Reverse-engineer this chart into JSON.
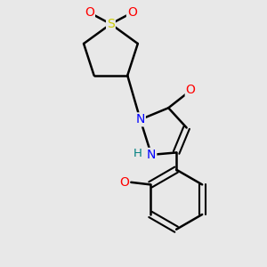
{
  "background_color": "#e8e8e8",
  "bond_color": "#000000",
  "atom_colors": {
    "S": "#cccc00",
    "O": "#ff0000",
    "N": "#0000ff",
    "H": "#008080",
    "C": "#000000"
  },
  "figsize": [
    3.0,
    3.0
  ],
  "dpi": 100
}
